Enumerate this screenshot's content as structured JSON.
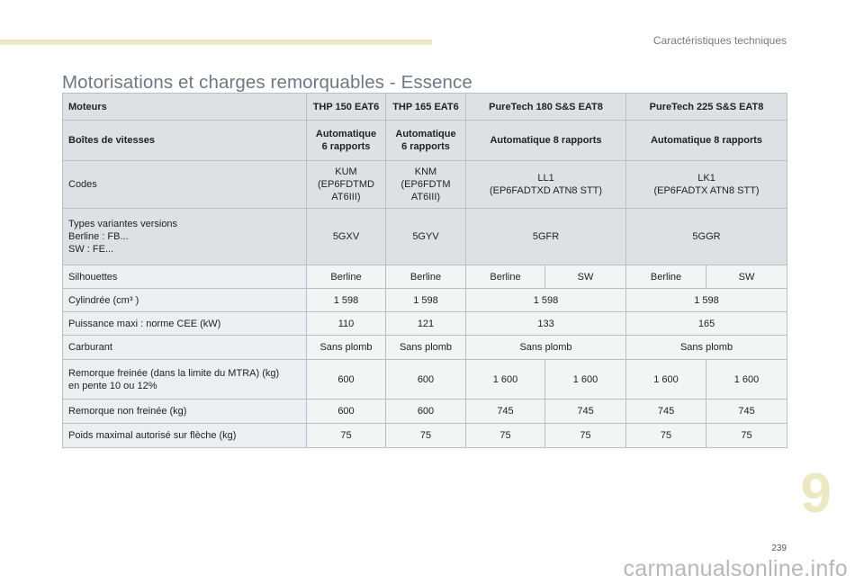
{
  "header": {
    "section_label": "Caractéristiques techniques"
  },
  "title": "Motorisations et charges remorquables - Essence",
  "table": {
    "engines_label": "Moteurs",
    "engines": [
      "THP 150 EAT6",
      "THP 165 EAT6",
      "PureTech 180 S&S EAT8",
      "PureTech 225 S&S EAT8"
    ],
    "gearbox_label": "Boîtes de vitesses",
    "gearboxes": [
      "Automatique\n6 rapports",
      "Automatique\n6 rapports",
      "Automatique 8 rapports",
      "Automatique 8 rapports"
    ],
    "codes_label": "Codes",
    "codes": [
      "KUM\n(EP6FDTMD\nAT6III)",
      "KNM\n(EP6FDTM\nAT6III)",
      "LL1\n(EP6FADTXD ATN8 STT)",
      "LK1\n(EP6FADTX ATN8 STT)"
    ],
    "variants_label": "Types variantes versions\nBerline : FB...\nSW : FE...",
    "variants": [
      "5GXV",
      "5GYV",
      "5GFR",
      "5GGR"
    ],
    "silhouettes_label": "Silhouettes",
    "silhouettes": [
      "Berline",
      "Berline",
      "Berline",
      "SW",
      "Berline",
      "SW"
    ],
    "displacement_label": "Cylindrée (cm³ )",
    "displacement": [
      "1 598",
      "1 598",
      "1 598",
      "1 598"
    ],
    "power_label": "Puissance maxi : norme CEE (kW)",
    "power": [
      "110",
      "121",
      "133",
      "165"
    ],
    "fuel_label": "Carburant",
    "fuel": [
      "Sans plomb",
      "Sans plomb",
      "Sans plomb",
      "Sans plomb"
    ],
    "braked_trailer_label": "Remorque freinée (dans la limite du MTRA) (kg)\nen pente 10 ou 12%",
    "braked_trailer": [
      "600",
      "600",
      "1 600",
      "1 600",
      "1 600",
      "1 600"
    ],
    "unbraked_trailer_label": "Remorque non freinée (kg)",
    "unbraked_trailer": [
      "600",
      "600",
      "745",
      "745",
      "745",
      "745"
    ],
    "noseweight_label": "Poids maximal autorisé sur flèche (kg)",
    "noseweight": [
      "75",
      "75",
      "75",
      "75",
      "75",
      "75"
    ]
  },
  "chapter_number": "9",
  "page_number": "239",
  "watermark": "carmanualsonline.info",
  "colors": {
    "accent_band": "#ece8c2",
    "header_row_bg": "#dde1e4",
    "body_row_bg": "#f3f4f4",
    "title": "#6f7880"
  }
}
